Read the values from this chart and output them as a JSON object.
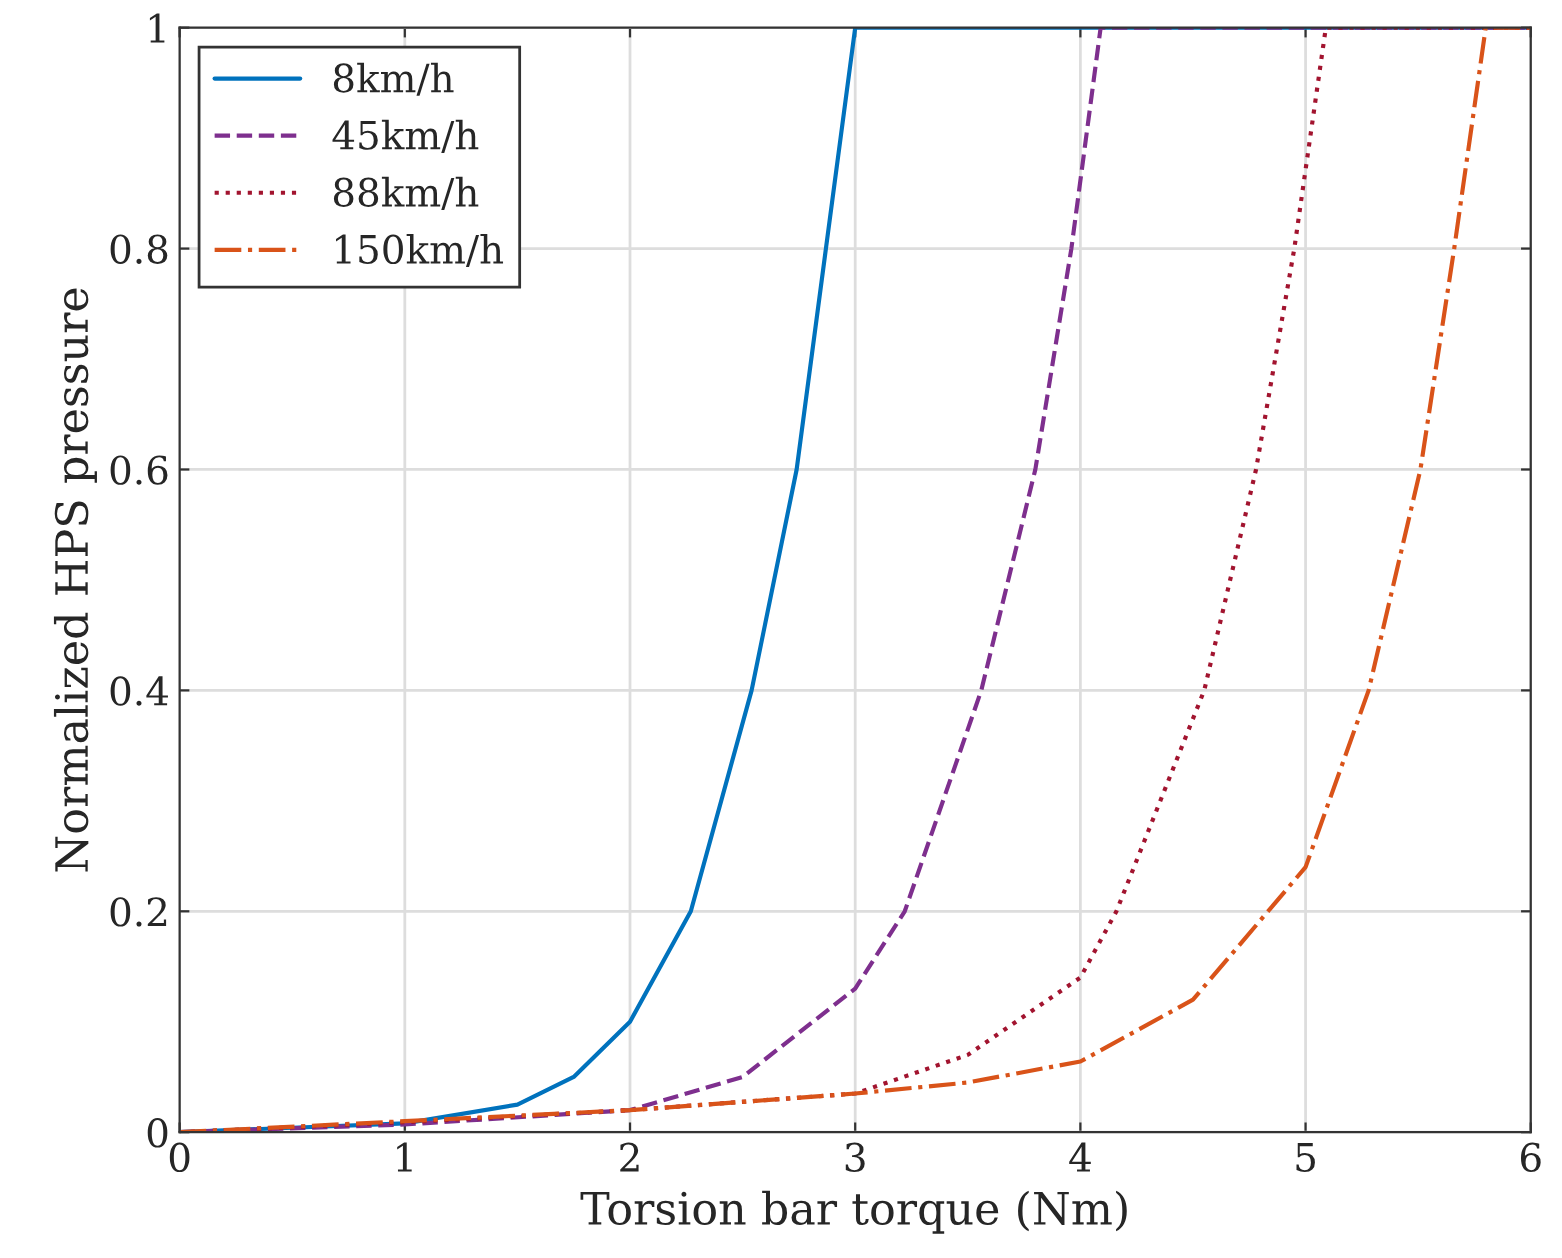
{
  "chart_data": {
    "type": "line",
    "xlabel": "Torsion bar torque (Nm)",
    "ylabel": "Normalized HPS pressure",
    "xlim": [
      0,
      6
    ],
    "ylim": [
      0,
      1
    ],
    "xticks": [
      0,
      1,
      2,
      3,
      4,
      5,
      6
    ],
    "yticks": [
      0,
      0.2,
      0.4,
      0.6,
      0.8,
      1
    ],
    "grid": true,
    "legend": "top left",
    "series": [
      {
        "name": "8km/h",
        "color": "#0072bd",
        "line_style": "solid",
        "x": [
          0,
          0.5,
          1,
          1.5,
          1.75,
          2,
          2.27,
          2.54,
          2.74,
          2.87,
          3,
          4,
          5,
          6
        ],
        "values": [
          0,
          0.004,
          0.008,
          0.025,
          0.05,
          0.1,
          0.2,
          0.4,
          0.6,
          0.8,
          1,
          1,
          1,
          1
        ]
      },
      {
        "name": "45km/h",
        "color": "#7e2f8e",
        "line_style": "dashed",
        "x": [
          0,
          1,
          2,
          2.5,
          3,
          3.22,
          3.56,
          3.8,
          3.96,
          4.09,
          5,
          6
        ],
        "values": [
          0,
          0.007,
          0.02,
          0.05,
          0.13,
          0.2,
          0.4,
          0.6,
          0.8,
          1,
          1,
          1
        ]
      },
      {
        "name": "88km/h",
        "color": "#a2142f",
        "line_style": "dotted",
        "x": [
          0,
          1,
          2,
          3,
          3.5,
          4,
          4.16,
          4.55,
          4.78,
          4.95,
          5.09,
          6
        ],
        "values": [
          0,
          0.009,
          0.02,
          0.035,
          0.07,
          0.14,
          0.2,
          0.4,
          0.6,
          0.8,
          1,
          1
        ]
      },
      {
        "name": "150km/h",
        "color": "#d95319",
        "line_style": "dashdot",
        "x": [
          0,
          1,
          2,
          3,
          3.5,
          4,
          4.5,
          5,
          5.28,
          5.51,
          5.66,
          5.8,
          6
        ],
        "values": [
          0,
          0.01,
          0.02,
          0.035,
          0.045,
          0.064,
          0.12,
          0.24,
          0.4,
          0.6,
          0.8,
          1,
          1
        ]
      }
    ]
  }
}
